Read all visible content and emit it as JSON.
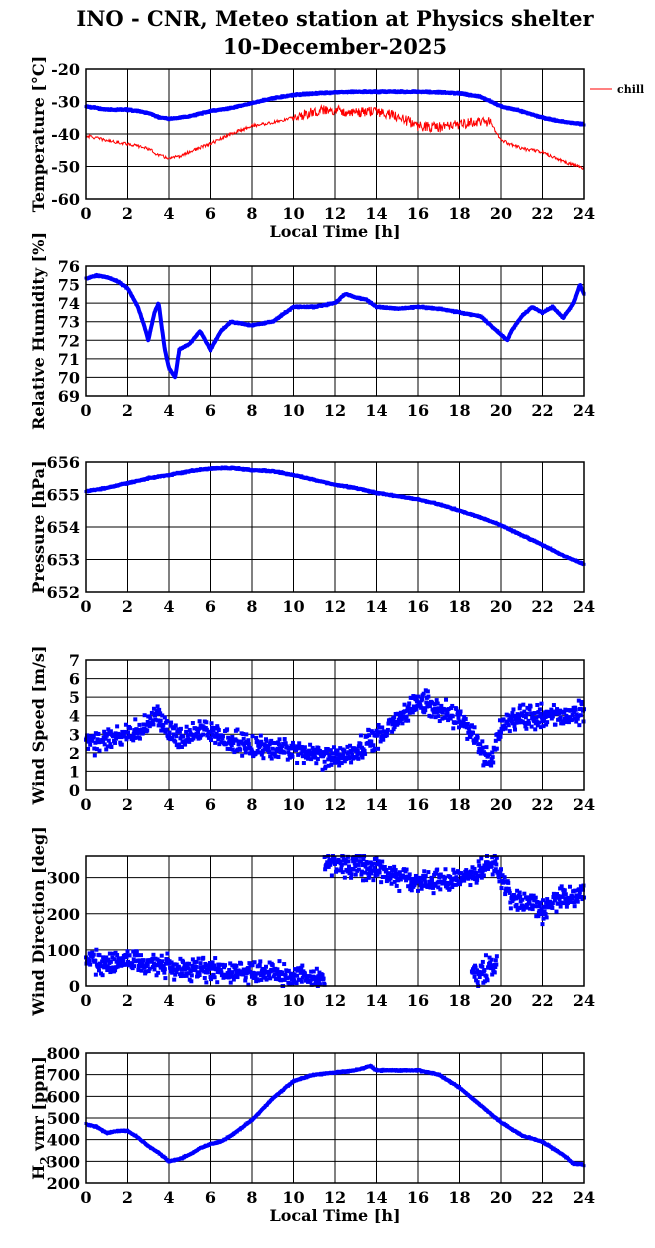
{
  "title": {
    "line1": "INO - CNR, Meteo station at Physics shelter",
    "line2": "10-December-2025"
  },
  "colors": {
    "primary": "#0000ff",
    "secondary": "#ff0000",
    "axis": "#000000",
    "grid": "#000000"
  },
  "chart_data": [
    {
      "type": "line",
      "title": "Temperature",
      "ylabel": "Temperature [°C]",
      "xlabel": "Local Time [h]",
      "ylim": [
        -60,
        -20
      ],
      "yticks": [
        -60,
        -50,
        -40,
        -30,
        -20
      ],
      "xlim": [
        0,
        24
      ],
      "xticks": [
        0,
        2,
        4,
        6,
        8,
        10,
        12,
        14,
        16,
        18,
        20,
        22,
        24
      ],
      "legend": [
        "chill"
      ],
      "series": [
        {
          "name": "temperature",
          "color": "#0000ff",
          "style": "thick",
          "x": [
            0,
            1,
            2,
            3,
            3.5,
            4,
            4.5,
            5,
            6,
            7,
            8,
            9,
            10,
            11,
            12,
            13,
            14,
            15,
            16,
            17,
            18,
            19,
            20,
            21,
            22,
            23,
            24
          ],
          "y": [
            -31.5,
            -32.5,
            -32.5,
            -33.5,
            -34.8,
            -35.3,
            -35,
            -34.5,
            -33,
            -32,
            -30.5,
            -29,
            -28,
            -27.5,
            -27.2,
            -27,
            -27,
            -27,
            -27,
            -27.2,
            -27.5,
            -28.5,
            -31.5,
            -33,
            -35,
            -36.3,
            -37
          ]
        },
        {
          "name": "chill",
          "color": "#ff0000",
          "style": "thin",
          "x": [
            0,
            1,
            2,
            3,
            3.5,
            4,
            4.5,
            5,
            6,
            7,
            8,
            9,
            10,
            11,
            12,
            13,
            14,
            15,
            16,
            17,
            18,
            19,
            19.5,
            20,
            21,
            22,
            23,
            24
          ],
          "y": [
            -40.5,
            -42,
            -43,
            -44.5,
            -46.5,
            -47.5,
            -47,
            -45.5,
            -43,
            -40,
            -37.5,
            -36.5,
            -35,
            -33,
            -32.5,
            -33.5,
            -33,
            -34.5,
            -37.5,
            -38,
            -37,
            -36,
            -36.5,
            -42,
            -44.5,
            -45.5,
            -48.5,
            -50.5
          ]
        }
      ]
    },
    {
      "type": "scatter",
      "title": "Relative Humidity",
      "ylabel": "Relative Humidity [%]",
      "xlabel": "",
      "ylim": [
        69,
        76
      ],
      "yticks": [
        69,
        70,
        71,
        72,
        73,
        74,
        75,
        76
      ],
      "xlim": [
        0,
        24
      ],
      "xticks": [
        0,
        2,
        4,
        6,
        8,
        10,
        12,
        14,
        16,
        18,
        20,
        22,
        24
      ],
      "series": [
        {
          "name": "humidity",
          "color": "#0000ff",
          "style": "thick",
          "x": [
            0,
            0.5,
            1,
            1.5,
            2,
            2.5,
            2.8,
            3,
            3.3,
            3.5,
            3.8,
            4,
            4.3,
            4.5,
            5,
            5.5,
            6,
            6.5,
            7,
            8,
            9,
            10,
            11,
            12,
            12.5,
            13,
            13.5,
            14,
            15,
            16,
            17,
            18,
            19,
            19.5,
            20,
            20.3,
            20.5,
            21,
            21.5,
            22,
            22.5,
            23,
            23.5,
            23.8,
            24
          ],
          "y": [
            75.3,
            75.5,
            75.4,
            75.2,
            74.8,
            73.8,
            72.8,
            72,
            73.5,
            74,
            71.5,
            70.5,
            70,
            71.5,
            71.8,
            72.5,
            71.5,
            72.5,
            73,
            72.8,
            73,
            73.8,
            73.8,
            74,
            74.5,
            74.3,
            74.2,
            73.8,
            73.7,
            73.8,
            73.7,
            73.5,
            73.3,
            72.8,
            72.3,
            72,
            72.5,
            73.3,
            73.8,
            73.5,
            73.8,
            73.2,
            74,
            75,
            74.5
          ]
        }
      ]
    },
    {
      "type": "line",
      "title": "Pressure",
      "ylabel": "Pressure [hPa]",
      "xlabel": "",
      "ylim": [
        652,
        656
      ],
      "yticks": [
        652,
        653,
        654,
        655,
        656
      ],
      "xlim": [
        0,
        24
      ],
      "xticks": [
        0,
        2,
        4,
        6,
        8,
        10,
        12,
        14,
        16,
        18,
        20,
        22,
        24
      ],
      "series": [
        {
          "name": "pressure",
          "color": "#0000ff",
          "style": "thick",
          "x": [
            0,
            1,
            2,
            3,
            4,
            5,
            6,
            7,
            8,
            9,
            10,
            11,
            12,
            13,
            14,
            15,
            16,
            17,
            18,
            19,
            20,
            21,
            22,
            23,
            24
          ],
          "y": [
            655.1,
            655.2,
            655.35,
            655.5,
            655.6,
            655.72,
            655.8,
            655.82,
            655.75,
            655.72,
            655.6,
            655.45,
            655.3,
            655.2,
            655.05,
            654.95,
            654.85,
            654.7,
            654.5,
            654.3,
            654.05,
            653.75,
            653.45,
            653.12,
            652.85
          ]
        }
      ]
    },
    {
      "type": "scatter",
      "title": "Wind Speed",
      "ylabel": "Wind Speed [m/s]",
      "xlabel": "",
      "ylim": [
        0,
        7
      ],
      "yticks": [
        0,
        1,
        2,
        3,
        4,
        5,
        6,
        7
      ],
      "xlim": [
        0,
        24
      ],
      "xticks": [
        0,
        2,
        4,
        6,
        8,
        10,
        12,
        14,
        16,
        18,
        20,
        22,
        24
      ],
      "series": [
        {
          "name": "wind_speed",
          "color": "#0000ff",
          "style": "noisy",
          "x": [
            0,
            0.5,
            1,
            1.5,
            2,
            2.5,
            3,
            3.3,
            3.7,
            4,
            4.5,
            5,
            5.5,
            6,
            6.5,
            7,
            8,
            9,
            10,
            11,
            12,
            13,
            13.5,
            14,
            14.5,
            15,
            15.5,
            16,
            16.5,
            17,
            17.5,
            18,
            18.5,
            19,
            19.3,
            19.6,
            20,
            20.5,
            21,
            21.5,
            22,
            22.5,
            23,
            23.5,
            24
          ],
          "y": [
            2.5,
            2.6,
            2.7,
            2.8,
            3,
            3.2,
            3.5,
            4,
            3.8,
            3,
            2.8,
            3,
            3.2,
            3.2,
            2.8,
            2.6,
            2.3,
            2.2,
            2.1,
            1.9,
            1.8,
            2,
            2.5,
            2.8,
            3.2,
            3.8,
            4.2,
            4.8,
            4.6,
            4.4,
            4,
            3.8,
            3.2,
            2.2,
            1.6,
            1.8,
            3.5,
            3.9,
            4,
            4,
            3.9,
            4,
            4,
            4.1,
            4.2
          ]
        }
      ]
    },
    {
      "type": "scatter",
      "title": "Wind Direction",
      "ylabel": "Wind Direction [deg]",
      "xlabel": "",
      "ylim": [
        0,
        360
      ],
      "yticks": [
        0,
        100,
        200,
        300
      ],
      "xlim": [
        0,
        24
      ],
      "xticks": [
        0,
        2,
        4,
        6,
        8,
        10,
        12,
        14,
        16,
        18,
        20,
        22,
        24
      ],
      "series": [
        {
          "name": "wind_direction_low",
          "color": "#0000ff",
          "style": "noisy",
          "x": [
            0,
            0.5,
            1,
            1.5,
            2,
            2.5,
            2.9,
            3.5,
            4,
            5,
            6,
            7,
            8,
            9,
            10,
            11,
            11.5
          ],
          "y": [
            70,
            68,
            66,
            67,
            65,
            66,
            62,
            50,
            55,
            48,
            45,
            40,
            38,
            35,
            30,
            25,
            15
          ]
        },
        {
          "name": "wind_direction_high",
          "color": "#0000ff",
          "style": "noisy",
          "x": [
            11.5,
            12,
            13,
            14,
            15,
            15.5,
            16,
            17,
            18,
            19,
            19.7,
            20,
            20.5,
            21,
            21.5,
            22,
            22.5,
            23,
            23.5,
            24
          ],
          "y": [
            345,
            340,
            335,
            320,
            300,
            290,
            285,
            290,
            300,
            315,
            340,
            300,
            240,
            225,
            230,
            205,
            235,
            245,
            250,
            255
          ]
        },
        {
          "name": "wind_direction_evening",
          "color": "#0000ff",
          "style": "noisy",
          "x": [
            18.6,
            18.9,
            19.2,
            19.5,
            19.8
          ],
          "y": [
            25,
            35,
            45,
            55,
            60
          ]
        }
      ]
    },
    {
      "type": "line",
      "title": "H2O vmr",
      "ylabel": "H2O vmr [ppm]",
      "xlabel": "Local Time [h]",
      "ylim": [
        200,
        800
      ],
      "yticks": [
        200,
        300,
        400,
        500,
        600,
        700,
        800
      ],
      "xlim": [
        0,
        24
      ],
      "xticks": [
        0,
        2,
        4,
        6,
        8,
        10,
        12,
        14,
        16,
        18,
        20,
        22,
        24
      ],
      "series": [
        {
          "name": "h2o",
          "color": "#0000ff",
          "style": "thick",
          "x": [
            0,
            0.5,
            1,
            1.5,
            2,
            2.5,
            3,
            3.5,
            4,
            4.5,
            5,
            5.5,
            6,
            6.5,
            7,
            8,
            9,
            10,
            11,
            12,
            13,
            13.7,
            14,
            15,
            16,
            17,
            18,
            19,
            20,
            21,
            22,
            23,
            23.5,
            24
          ],
          "y": [
            470,
            460,
            430,
            440,
            440,
            410,
            370,
            340,
            300,
            310,
            330,
            360,
            380,
            390,
            420,
            490,
            590,
            670,
            700,
            710,
            720,
            740,
            720,
            720,
            720,
            700,
            640,
            560,
            480,
            420,
            390,
            330,
            290,
            285
          ]
        }
      ]
    }
  ]
}
